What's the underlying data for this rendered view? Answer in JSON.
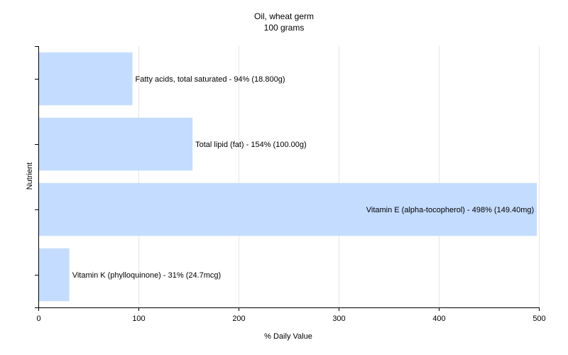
{
  "chart_data": {
    "type": "bar",
    "orientation": "horizontal",
    "title": "Oil, wheat germ",
    "subtitle": "100 grams",
    "xlabel": "% Daily Value",
    "ylabel": "Nutrient",
    "xlim": [
      0,
      500
    ],
    "xticks": [
      0,
      100,
      200,
      300,
      400,
      500
    ],
    "grid": true,
    "bar_color": "#c4dcff",
    "bars": [
      {
        "value": 94,
        "label": "Fatty acids, total saturated - 94% (18.800g)"
      },
      {
        "value": 154,
        "label": "Total lipid (fat) - 154% (100.00g)"
      },
      {
        "value": 498,
        "label": "Vitamin E (alpha-tocopherol) - 498% (149.40mg)"
      },
      {
        "value": 31,
        "label": "Vitamin K (phylloquinone) - 31% (24.7mcg)"
      }
    ]
  }
}
